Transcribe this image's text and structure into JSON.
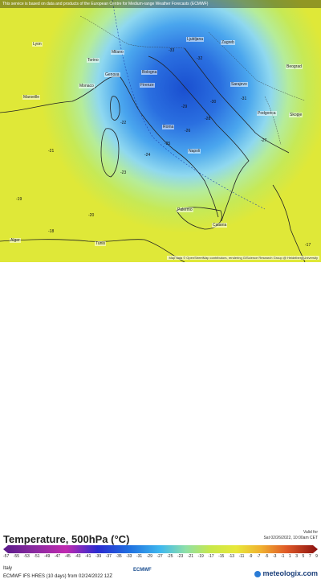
{
  "banner": "This service is based on data and products of the European Centre for Medium-range Weather Forecasts (ECMWF)",
  "attribution": "Map data © OpenStreetMap contributors, rendering GIScience Research Group @ Heidelberg University",
  "title": "Temperature, 500hPa (°C)",
  "valid_label": "Valid for",
  "valid_time": "Sat 02/26/2022, 10:00am CET",
  "region": "Italy",
  "model_run": "ECMWF IFS HRES (10 days)  from 02/24/2022 12Z",
  "logo_ecmwf": "ECMWF",
  "logo_brand": "meteologix.com",
  "scale_ticks": [
    "-57",
    "-55",
    "-53",
    "-51",
    "-49",
    "-47",
    "-45",
    "-43",
    "-41",
    "-39",
    "-37",
    "-35",
    "-33",
    "-31",
    "-29",
    "-27",
    "-25",
    "-23",
    "-21",
    "-19",
    "-17",
    "-15",
    "-13",
    "-11",
    "-9",
    "-7",
    "-5",
    "-3",
    "-1",
    "1",
    "3",
    "5",
    "7",
    "9"
  ],
  "colors": {
    "cold": "#1f5fd6",
    "mid": "#3fa0e8",
    "light": "#8fd3f0",
    "warm": "#c8e84a",
    "hot": "#e8e83a"
  },
  "cities": [
    {
      "name": "Ljubljana"
    },
    {
      "name": "Zagreb"
    },
    {
      "name": "Torino"
    },
    {
      "name": "Milano"
    },
    {
      "name": "Genova"
    },
    {
      "name": "Monaco"
    },
    {
      "name": "Bologna"
    },
    {
      "name": "Firenze"
    },
    {
      "name": "Marseille"
    },
    {
      "name": "Roma"
    },
    {
      "name": "Napoli"
    },
    {
      "name": "Sarajevo"
    },
    {
      "name": "Beograd"
    },
    {
      "name": "Podgorica"
    },
    {
      "name": "Palermo"
    },
    {
      "name": "Catania"
    },
    {
      "name": "Alger"
    },
    {
      "name": "Tunis"
    },
    {
      "name": "Lyon"
    },
    {
      "name": "Skopje"
    }
  ],
  "contours": [
    "-21",
    "-22",
    "-23",
    "-24",
    "-25",
    "-26",
    "-27",
    "-28",
    "-29",
    "-30",
    "-31",
    "-20",
    "-19",
    "-18",
    "-17",
    "-32",
    "-33"
  ]
}
